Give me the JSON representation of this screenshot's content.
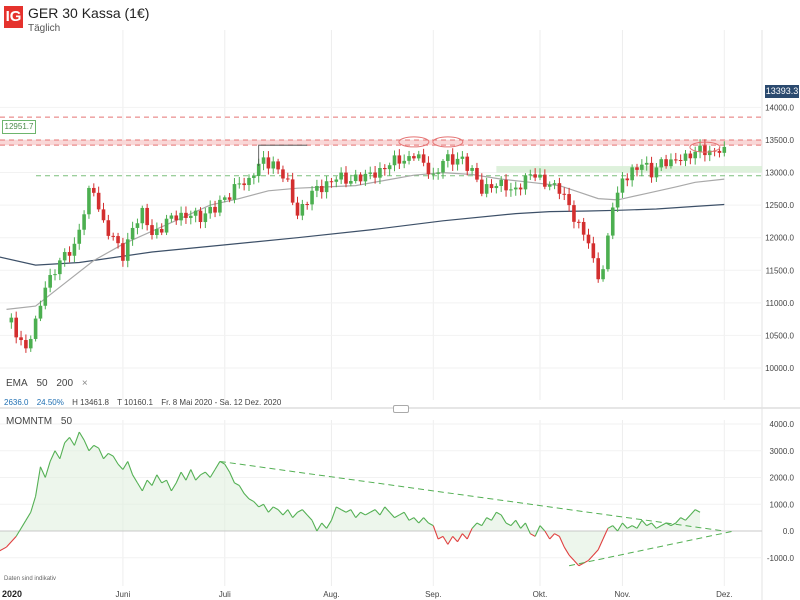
{
  "header": {
    "logo": "IG",
    "title": "GER 30 Kassa (1€)",
    "subtitle": "Täglich"
  },
  "indicator": {
    "name": "EMA",
    "p1": "50",
    "p2": "200",
    "close": "×"
  },
  "stats": {
    "change": "2636.0",
    "pct": "24.50%",
    "high": "H 13461.8",
    "low": "T 10160.1",
    "range": "Fr. 8 Mai 2020 - Sa. 12 Dez. 2020"
  },
  "momentum": {
    "name": "MOMNTM",
    "period": "50"
  },
  "footer": {
    "disclaimer": "Daten sind indikativ",
    "year": "2020"
  },
  "last_price": "13393.3",
  "level_label": "12951.7",
  "colors": {
    "up": "#4caf50",
    "down": "#d32f2f",
    "ema50": "#a9a9a9",
    "ema200": "#3d5068",
    "resistance": "#e57373",
    "support": "#7cbf7c",
    "zone_red": "#f8d0d0",
    "zone_green": "#d8efd6",
    "momentum_up": "#54b054",
    "momentum_down": "#e04040",
    "accent": "#e5322d"
  },
  "chart_data": [
    {
      "type": "candlestick",
      "title": "GER 30 Kassa (1€)",
      "y_ticks": [
        "14000.0",
        "13500.0",
        "13000.0",
        "12500.0",
        "12000.0",
        "11500.0",
        "11000.0",
        "10500.0",
        "10000.0"
      ],
      "ylim": [
        9800,
        14100
      ],
      "x_ticks": [
        "Juni",
        "Juli",
        "Aug.",
        "Sep.",
        "Okt.",
        "Nov.",
        "Dez."
      ],
      "x_tick_days": [
        24,
        45,
        67,
        88,
        110,
        127,
        148
      ],
      "anchor_points": [
        [
          1,
          10700
        ],
        [
          4,
          10300
        ],
        [
          6,
          10650
        ],
        [
          8,
          11300
        ],
        [
          11,
          11600
        ],
        [
          14,
          11900
        ],
        [
          17,
          12650
        ],
        [
          18,
          12700
        ],
        [
          20,
          12250
        ],
        [
          24,
          11700
        ],
        [
          26,
          12200
        ],
        [
          28,
          12350
        ],
        [
          30,
          12050
        ],
        [
          33,
          12250
        ],
        [
          35,
          12300
        ],
        [
          38,
          12400
        ],
        [
          40,
          12250
        ],
        [
          42,
          12450
        ],
        [
          44,
          12550
        ],
        [
          46,
          12600
        ],
        [
          48,
          12900
        ],
        [
          50,
          12850
        ],
        [
          53,
          13200
        ],
        [
          55,
          13150
        ],
        [
          58,
          12800
        ],
        [
          60,
          12400
        ],
        [
          62,
          12550
        ],
        [
          64,
          12750
        ],
        [
          66,
          12850
        ],
        [
          68,
          12900
        ],
        [
          70,
          12880
        ],
        [
          72,
          12950
        ],
        [
          74,
          12900
        ],
        [
          76,
          13000
        ],
        [
          78,
          13100
        ],
        [
          80,
          13150
        ],
        [
          82,
          13200
        ],
        [
          84,
          13300
        ],
        [
          86,
          13100
        ],
        [
          88,
          12950
        ],
        [
          90,
          13200
        ],
        [
          92,
          13150
        ],
        [
          94,
          13250
        ],
        [
          96,
          13000
        ],
        [
          98,
          12700
        ],
        [
          100,
          12850
        ],
        [
          102,
          12800
        ],
        [
          104,
          12700
        ],
        [
          106,
          12850
        ],
        [
          108,
          12950
        ],
        [
          110,
          12900
        ],
        [
          112,
          12850
        ],
        [
          114,
          12700
        ],
        [
          116,
          12500
        ],
        [
          118,
          12200
        ],
        [
          120,
          11900
        ],
        [
          121,
          11600
        ],
        [
          122,
          11450
        ],
        [
          123,
          11550
        ],
        [
          124,
          12000
        ],
        [
          125,
          12500
        ],
        [
          126,
          12600
        ],
        [
          127,
          12900
        ],
        [
          129,
          13050
        ],
        [
          131,
          13100
        ],
        [
          133,
          13000
        ],
        [
          135,
          13200
        ],
        [
          137,
          13100
        ],
        [
          139,
          13250
        ],
        [
          142,
          13300
        ],
        [
          146,
          13350
        ],
        [
          148,
          13393.3
        ]
      ],
      "ema50_points": [
        [
          0,
          10900
        ],
        [
          6,
          10950
        ],
        [
          12,
          11300
        ],
        [
          18,
          11650
        ],
        [
          24,
          11900
        ],
        [
          30,
          12100
        ],
        [
          36,
          12300
        ],
        [
          42,
          12500
        ],
        [
          48,
          12600
        ],
        [
          54,
          12720
        ],
        [
          60,
          12760
        ],
        [
          66,
          12780
        ],
        [
          72,
          12800
        ],
        [
          78,
          12880
        ],
        [
          84,
          12960
        ],
        [
          90,
          13000
        ],
        [
          96,
          12970
        ],
        [
          102,
          12900
        ],
        [
          108,
          12850
        ],
        [
          114,
          12800
        ],
        [
          118,
          12700
        ],
        [
          122,
          12600
        ],
        [
          126,
          12580
        ],
        [
          132,
          12680
        ],
        [
          138,
          12780
        ],
        [
          142,
          12850
        ],
        [
          148,
          12900
        ]
      ],
      "ema200_points": [
        [
          -6,
          11780
        ],
        [
          6,
          11580
        ],
        [
          15,
          11620
        ],
        [
          30,
          11780
        ],
        [
          45,
          11890
        ],
        [
          60,
          12000
        ],
        [
          75,
          12120
        ],
        [
          90,
          12260
        ],
        [
          105,
          12370
        ],
        [
          112,
          12400
        ],
        [
          120,
          12410
        ],
        [
          126,
          12420
        ],
        [
          134,
          12440
        ],
        [
          142,
          12480
        ],
        [
          148,
          12510
        ]
      ],
      "resistance_levels": [
        13850,
        13500,
        13420
      ],
      "support_levels": [
        12950
      ],
      "highlight_zones": [
        {
          "color": "red",
          "from": 13420,
          "to": 13500
        },
        {
          "color": "green",
          "from": 13000,
          "to": 13100
        }
      ],
      "last_value": 13393.3,
      "high": 13461.8,
      "low": 10160.1
    },
    {
      "type": "line",
      "name": "MOMNTM 50",
      "y_ticks": [
        "4000.0",
        "3000.0",
        "2000.0",
        "1000.0",
        "0.0",
        "-1000.0"
      ],
      "ylim": [
        -1600,
        4400
      ],
      "points": [
        [
          -6,
          -1200
        ],
        [
          0,
          -600
        ],
        [
          2,
          -200
        ],
        [
          4,
          400
        ],
        [
          5,
          700
        ],
        [
          6,
          1300
        ],
        [
          7,
          2400
        ],
        [
          8,
          2000
        ],
        [
          9,
          2600
        ],
        [
          10,
          3000
        ],
        [
          11,
          2700
        ],
        [
          12,
          3300
        ],
        [
          13,
          3500
        ],
        [
          14,
          3200
        ],
        [
          15,
          3700
        ],
        [
          16,
          3400
        ],
        [
          17,
          3000
        ],
        [
          18,
          3200
        ],
        [
          19,
          3100
        ],
        [
          20,
          2700
        ],
        [
          21,
          2900
        ],
        [
          22,
          2800
        ],
        [
          23,
          2500
        ],
        [
          24,
          2300
        ],
        [
          25,
          2600
        ],
        [
          26,
          2100
        ],
        [
          27,
          1800
        ],
        [
          28,
          1500
        ],
        [
          29,
          1900
        ],
        [
          30,
          1700
        ],
        [
          31,
          2100
        ],
        [
          32,
          1800
        ],
        [
          33,
          1900
        ],
        [
          34,
          1500
        ],
        [
          35,
          1800
        ],
        [
          36,
          2200
        ],
        [
          37,
          1900
        ],
        [
          38,
          2300
        ],
        [
          39,
          1900
        ],
        [
          40,
          2100
        ],
        [
          41,
          2200
        ],
        [
          42,
          2000
        ],
        [
          43,
          2300
        ],
        [
          44,
          2600
        ],
        [
          45,
          2500
        ],
        [
          46,
          2200
        ],
        [
          47,
          1800
        ],
        [
          48,
          1700
        ],
        [
          49,
          1400
        ],
        [
          50,
          1200
        ],
        [
          51,
          1100
        ],
        [
          52,
          900
        ],
        [
          53,
          1000
        ],
        [
          54,
          700
        ],
        [
          55,
          900
        ],
        [
          56,
          800
        ],
        [
          57,
          600
        ],
        [
          58,
          800
        ],
        [
          59,
          500
        ],
        [
          60,
          700
        ],
        [
          61,
          800
        ],
        [
          62,
          600
        ],
        [
          63,
          400
        ],
        [
          64,
          0
        ],
        [
          65,
          300
        ],
        [
          66,
          100
        ],
        [
          67,
          400
        ],
        [
          68,
          900
        ],
        [
          69,
          800
        ],
        [
          70,
          700
        ],
        [
          71,
          800
        ],
        [
          72,
          500
        ],
        [
          73,
          700
        ],
        [
          74,
          600
        ],
        [
          75,
          700
        ],
        [
          76,
          800
        ],
        [
          77,
          600
        ],
        [
          78,
          900
        ],
        [
          79,
          700
        ],
        [
          80,
          500
        ],
        [
          81,
          600
        ],
        [
          82,
          700
        ],
        [
          83,
          400
        ],
        [
          84,
          500
        ],
        [
          85,
          300
        ],
        [
          86,
          500
        ],
        [
          87,
          300
        ],
        [
          88,
          200
        ],
        [
          89,
          -300
        ],
        [
          90,
          -200
        ],
        [
          91,
          -500
        ],
        [
          92,
          -200
        ],
        [
          93,
          -400
        ],
        [
          94,
          -100
        ],
        [
          95,
          -300
        ],
        [
          96,
          100
        ],
        [
          97,
          300
        ],
        [
          98,
          200
        ],
        [
          99,
          500
        ],
        [
          100,
          400
        ],
        [
          101,
          700
        ],
        [
          102,
          600
        ],
        [
          103,
          300
        ],
        [
          104,
          200
        ],
        [
          105,
          400
        ],
        [
          106,
          100
        ],
        [
          107,
          300
        ],
        [
          108,
          -100
        ],
        [
          109,
          -200
        ],
        [
          110,
          200
        ],
        [
          111,
          0
        ],
        [
          112,
          -300
        ],
        [
          113,
          -100
        ],
        [
          114,
          -200
        ],
        [
          115,
          -600
        ],
        [
          116,
          -900
        ],
        [
          117,
          -1100
        ],
        [
          118,
          -1300
        ],
        [
          119,
          -1200
        ],
        [
          120,
          -1100
        ],
        [
          121,
          -900
        ],
        [
          122,
          -700
        ],
        [
          123,
          -300
        ],
        [
          124,
          100
        ],
        [
          125,
          200
        ],
        [
          126,
          0
        ],
        [
          127,
          300
        ],
        [
          128,
          100
        ],
        [
          129,
          200
        ],
        [
          130,
          100
        ],
        [
          131,
          400
        ],
        [
          132,
          200
        ],
        [
          133,
          300
        ],
        [
          134,
          100
        ],
        [
          135,
          200
        ],
        [
          136,
          300
        ],
        [
          137,
          200
        ],
        [
          138,
          300
        ],
        [
          139,
          500
        ],
        [
          140,
          400
        ],
        [
          141,
          600
        ],
        [
          142,
          800
        ],
        [
          143,
          700
        ]
      ],
      "trendlines": [
        {
          "from": [
            44,
            2600
          ],
          "to": [
            148,
            0
          ]
        },
        {
          "from": [
            116,
            -1300
          ],
          "to": [
            150,
            0
          ]
        }
      ]
    }
  ]
}
